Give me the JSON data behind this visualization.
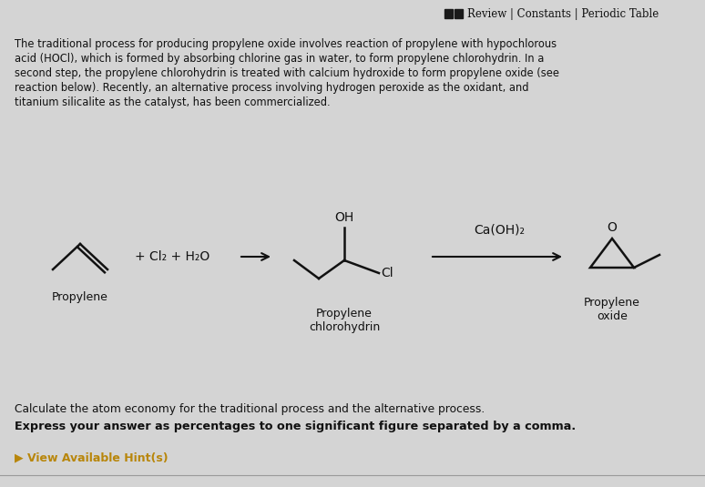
{
  "bg_color": "#d4d4d4",
  "header_text": "Review | Constants | Periodic Table",
  "body_text_lines": [
    "The traditional process for producing propylene oxide involves reaction of propylene with hypochlorous",
    "acid (HOCl), which is formed by absorbing chlorine gas in water, to form propylene chlorohydrin. In a",
    "second step, the propylene chlorohydrin is treated with calcium hydroxide to form propylene oxide (see",
    "reaction below). Recently, an alternative process involving hydrogen peroxide as the oxidant, and",
    "titanium silicalite as the catalyst, has been commercialized."
  ],
  "footer_text1": "Calculate the atom economy for the traditional process and the alternative process.",
  "footer_text2": "Express your answer as percentages to one significant figure separated by a comma.",
  "footer_hint": "▶ View Available Hint(s)",
  "hint_color": "#b8860b",
  "label_propylene": "Propylene",
  "label_chlorohydrin1": "Propylene",
  "label_chlorohydrin2": "chlorohydrin",
  "label_oxide1": "Propylene",
  "label_oxide2": "oxide",
  "reagent1": "+ Cl₂ + H₂O",
  "reagent2": "Ca(OH)₂",
  "oh_label": "OH",
  "cl_label": "Cl",
  "o_label": "O",
  "text_color": "#111111",
  "line_color": "#111111"
}
